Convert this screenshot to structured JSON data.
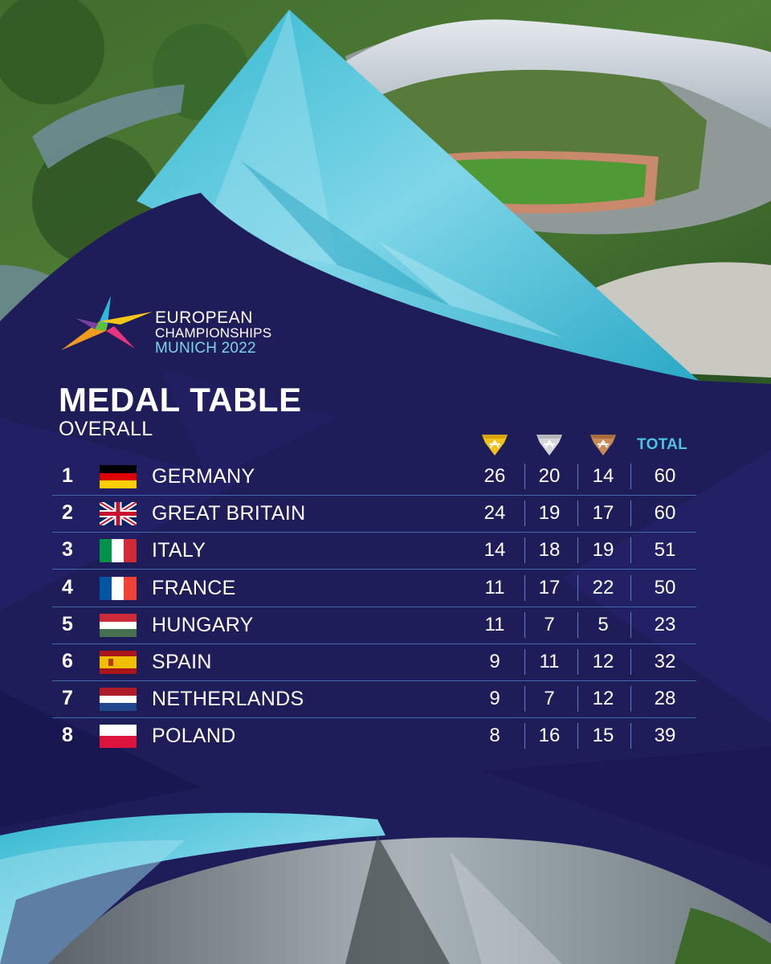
{
  "logo": {
    "line1": "EUROPEAN",
    "line2": "CHAMPIONSHIPS",
    "line3": "MUNICH 2022"
  },
  "title": "MEDAL TABLE",
  "subtitle": "OVERALL",
  "columns": {
    "gold_icon": "gold-medal-icon",
    "silver_icon": "silver-medal-icon",
    "bronze_icon": "bronze-medal-icon",
    "total": "TOTAL"
  },
  "colors": {
    "background": "#1c1a56",
    "accent": "#4fc3e0",
    "gold": "#f2c21b",
    "silver": "#d6d6d9",
    "bronze": "#c98a55"
  },
  "rows": [
    {
      "rank": "1",
      "country": "GERMANY",
      "flag": "germany-flag-icon",
      "gold": "26",
      "silver": "20",
      "bronze": "14",
      "total": "60"
    },
    {
      "rank": "2",
      "country": "GREAT BRITAIN",
      "flag": "great-britain-flag-icon",
      "gold": "24",
      "silver": "19",
      "bronze": "17",
      "total": "60"
    },
    {
      "rank": "3",
      "country": "ITALY",
      "flag": "italy-flag-icon",
      "gold": "14",
      "silver": "18",
      "bronze": "19",
      "total": "51"
    },
    {
      "rank": "4",
      "country": "FRANCE",
      "flag": "france-flag-icon",
      "gold": "11",
      "silver": "17",
      "bronze": "22",
      "total": "50"
    },
    {
      "rank": "5",
      "country": "HUNGARY",
      "flag": "hungary-flag-icon",
      "gold": "11",
      "silver": "7",
      "bronze": "5",
      "total": "23"
    },
    {
      "rank": "6",
      "country": "SPAIN",
      "flag": "spain-flag-icon",
      "gold": "9",
      "silver": "11",
      "bronze": "12",
      "total": "32"
    },
    {
      "rank": "7",
      "country": "NETHERLANDS",
      "flag": "netherlands-flag-icon",
      "gold": "9",
      "silver": "7",
      "bronze": "12",
      "total": "28"
    },
    {
      "rank": "8",
      "country": "POLAND",
      "flag": "poland-flag-icon",
      "gold": "8",
      "silver": "16",
      "bronze": "15",
      "total": "39"
    }
  ]
}
